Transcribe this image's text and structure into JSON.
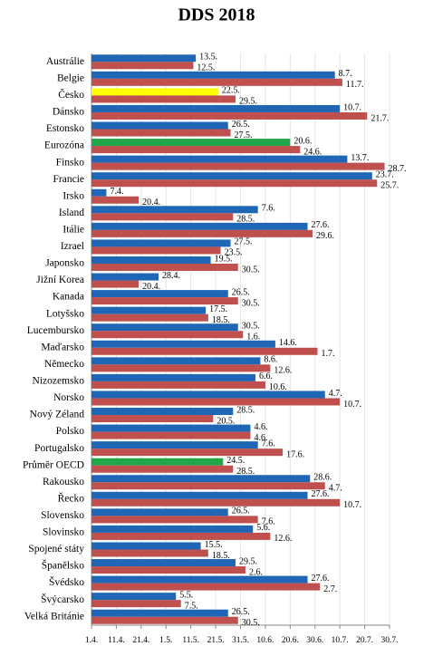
{
  "chart_data": {
    "type": "hbar",
    "title": "DDS 2018",
    "categories": [
      "Austrálie",
      "Belgie",
      "Česko",
      "Dánsko",
      "Estonsko",
      "Eurozóna",
      "Finsko",
      "Francie",
      "Irsko",
      "Island",
      "Itálie",
      "Izrael",
      "Japonsko",
      "Jižní Korea",
      "Kanada",
      "Lotyšsko",
      "Lucembursko",
      "Maďarsko",
      "Německo",
      "Nizozemsko",
      "Norsko",
      "Nový Zéland",
      "Polsko",
      "Portugalsko",
      "Průměr OECD",
      "Rakousko",
      "Řecko",
      "Slovensko",
      "Slovinsko",
      "Spojené státy",
      "Španělsko",
      "Švédsko",
      "Švýcarsko",
      "Velká Británie"
    ],
    "series": [
      {
        "color": "#1f66b7",
        "colors": [
          "#1f66b7",
          "#1f66b7",
          "#ffff00",
          "#1f66b7",
          "#1f66b7",
          "#22a64a",
          "#1f66b7",
          "#1f66b7",
          "#1f66b7",
          "#1f66b7",
          "#1f66b7",
          "#1f66b7",
          "#1f66b7",
          "#1f66b7",
          "#1f66b7",
          "#1f66b7",
          "#1f66b7",
          "#1f66b7",
          "#1f66b7",
          "#1f66b7",
          "#1f66b7",
          "#1f66b7",
          "#1f66b7",
          "#1f66b7",
          "#22a64a",
          "#1f66b7",
          "#1f66b7",
          "#1f66b7",
          "#1f66b7",
          "#1f66b7",
          "#1f66b7",
          "#1f66b7",
          "#1f66b7",
          "#1f66b7"
        ],
        "values": [
          42,
          98,
          51,
          100,
          55,
          80,
          103,
          113,
          6,
          67,
          87,
          56,
          48,
          27,
          55,
          46,
          59,
          74,
          68,
          66,
          94,
          57,
          64,
          67,
          53,
          88,
          87,
          55,
          65,
          44,
          58,
          87,
          34,
          55
        ],
        "value_labels": [
          "13.5.",
          "8.7.",
          "22.5.",
          "10.7.",
          "26.5.",
          "20.6.",
          "13.7.",
          "23.7.",
          "7.4.",
          "7.6.",
          "27.6.",
          "27.5.",
          "19.5.",
          "28.4.",
          "26.5.",
          "17.5.",
          "30.5.",
          "14.6.",
          "8.6.",
          "6.6.",
          "4.7.",
          "28.5.",
          "4.6.",
          "7.6.",
          "24.5.",
          "28.6.",
          "27.6.",
          "26.5.",
          "5.6.",
          "15.5.",
          "29.5.",
          "27.6.",
          "5.5.",
          "26.5."
        ]
      },
      {
        "color": "#c0504d",
        "values": [
          41,
          101,
          58,
          111,
          56,
          84,
          118,
          115,
          19,
          57,
          89,
          52,
          59,
          19,
          59,
          47,
          61,
          91,
          72,
          70,
          100,
          49,
          64,
          77,
          57,
          94,
          100,
          67,
          72,
          47,
          62,
          92,
          36,
          59
        ],
        "value_labels": [
          "12.5.",
          "11.7.",
          "29.5.",
          "21.7.",
          "27.5.",
          "24.6.",
          "28.7.",
          "25.7.",
          "20.4.",
          "28.5.",
          "29.6.",
          "23.5.",
          "30.5.",
          "20.4.",
          "30.5.",
          "18.5.",
          "1.6.",
          "1.7.",
          "12.6.",
          "10.6.",
          "10.7.",
          "20.5.",
          "4.6.",
          "17.6.",
          "28.5.",
          "4.7.",
          "10.7.",
          "7.6.",
          "12.6.",
          "18.5.",
          "2.6.",
          "2.7.",
          "7.5.",
          "30.5."
        ]
      }
    ],
    "xlim": [
      0,
      120
    ],
    "xticks": [
      {
        "value": 0,
        "label": "1.4."
      },
      {
        "value": 10,
        "label": "11.4."
      },
      {
        "value": 20,
        "label": "21.4."
      },
      {
        "value": 30,
        "label": "1.5."
      },
      {
        "value": 40,
        "label": "11.5."
      },
      {
        "value": 50,
        "label": "21.5."
      },
      {
        "value": 60,
        "label": "31.5."
      },
      {
        "value": 70,
        "label": "10.6."
      },
      {
        "value": 80,
        "label": "20.6."
      },
      {
        "value": 90,
        "label": "30.6."
      },
      {
        "value": 100,
        "label": "10.7."
      },
      {
        "value": 110,
        "label": "20.7."
      },
      {
        "value": 120,
        "label": "30.7."
      }
    ],
    "grid": true
  }
}
